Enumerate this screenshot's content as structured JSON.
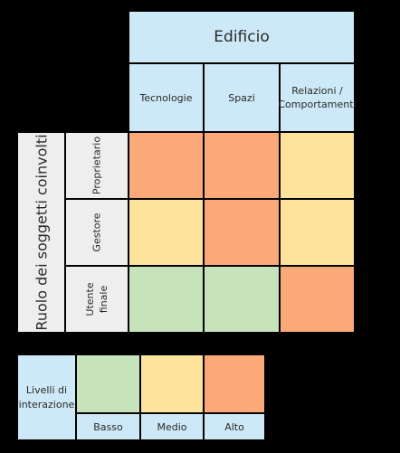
{
  "header": {
    "title": "Edificio",
    "columns": [
      "Tecnologie",
      "Spazi",
      "Relazioni /\nComportamenti"
    ]
  },
  "side": {
    "title": "Ruolo dei soggetti coinvolti",
    "rows": [
      "Proprietario",
      "Gestore",
      "Utente\nfinale"
    ]
  },
  "matrix": {
    "levels": [
      [
        "alto",
        "alto",
        "medio"
      ],
      [
        "medio",
        "alto",
        "medio"
      ],
      [
        "basso",
        "basso",
        "alto"
      ]
    ]
  },
  "legend": {
    "title": "Livelli di\ninterazione",
    "items": [
      {
        "key": "basso",
        "label": "Basso"
      },
      {
        "key": "medio",
        "label": "Medio"
      },
      {
        "key": "alto",
        "label": "Alto"
      }
    ]
  },
  "colors": {
    "basso": "#c6e3bb",
    "medio": "#fde39c",
    "alto": "#fca97a",
    "header_bg": "#cde9f7",
    "label_bg": "#eeeeee"
  }
}
